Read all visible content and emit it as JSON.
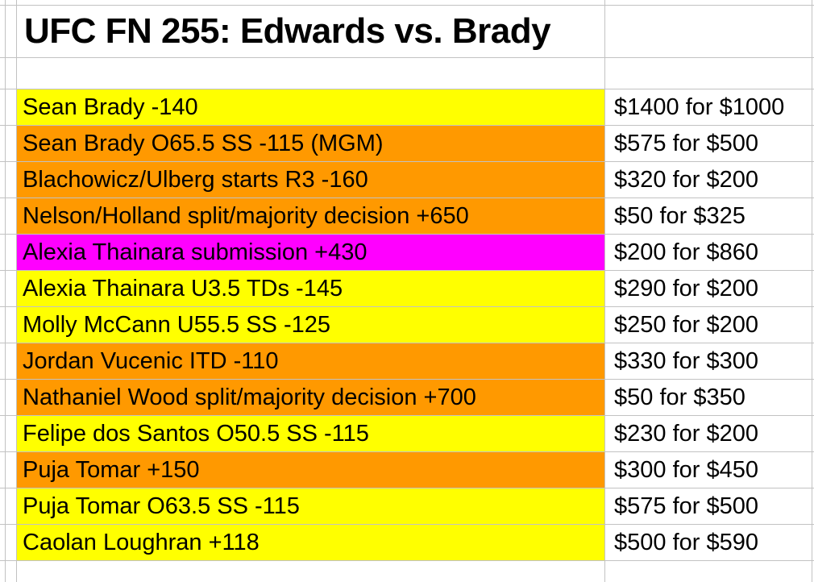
{
  "sheet": {
    "title": "UFC FN 255: Edwards vs. Brady",
    "colors": {
      "yellow": "#ffff00",
      "orange": "#ff9900",
      "magenta": "#ff00ff",
      "gridline": "#c2c2c2",
      "cell_background": "#ffffff",
      "text": "#000000"
    },
    "columns": {
      "bet_column_header": "",
      "payout_column_header": ""
    },
    "rows": [
      {
        "label": "Sean Brady -140",
        "payout": "$1400 for $1000",
        "color": "yellow"
      },
      {
        "label": "Sean Brady O65.5 SS -115 (MGM)",
        "payout": "$575 for $500",
        "color": "orange"
      },
      {
        "label": "Blachowicz/Ulberg starts R3 -160",
        "payout": "$320 for $200",
        "color": "orange"
      },
      {
        "label": "Nelson/Holland split/majority decision +650",
        "payout": "$50 for $325",
        "color": "orange"
      },
      {
        "label": "Alexia Thainara submission +430",
        "payout": "$200 for $860",
        "color": "magenta"
      },
      {
        "label": "Alexia Thainara U3.5 TDs -145",
        "payout": "$290 for $200",
        "color": "yellow"
      },
      {
        "label": "Molly McCann U55.5 SS -125",
        "payout": "$250 for $200",
        "color": "yellow"
      },
      {
        "label": "Jordan Vucenic ITD -110",
        "payout": "$330 for $300",
        "color": "orange"
      },
      {
        "label": "Nathaniel Wood split/majority decision +700",
        "payout": "$50 for $350",
        "color": "orange"
      },
      {
        "label": "Felipe dos Santos O50.5 SS -115",
        "payout": "$230 for $200",
        "color": "yellow"
      },
      {
        "label": "Puja Tomar +150",
        "payout": "$300 for $450",
        "color": "orange"
      },
      {
        "label": "Puja Tomar O63.5 SS -115",
        "payout": "$575 for $500",
        "color": "yellow"
      },
      {
        "label": "Caolan Loughran +118",
        "payout": "$500 for $590",
        "color": "yellow"
      }
    ]
  }
}
